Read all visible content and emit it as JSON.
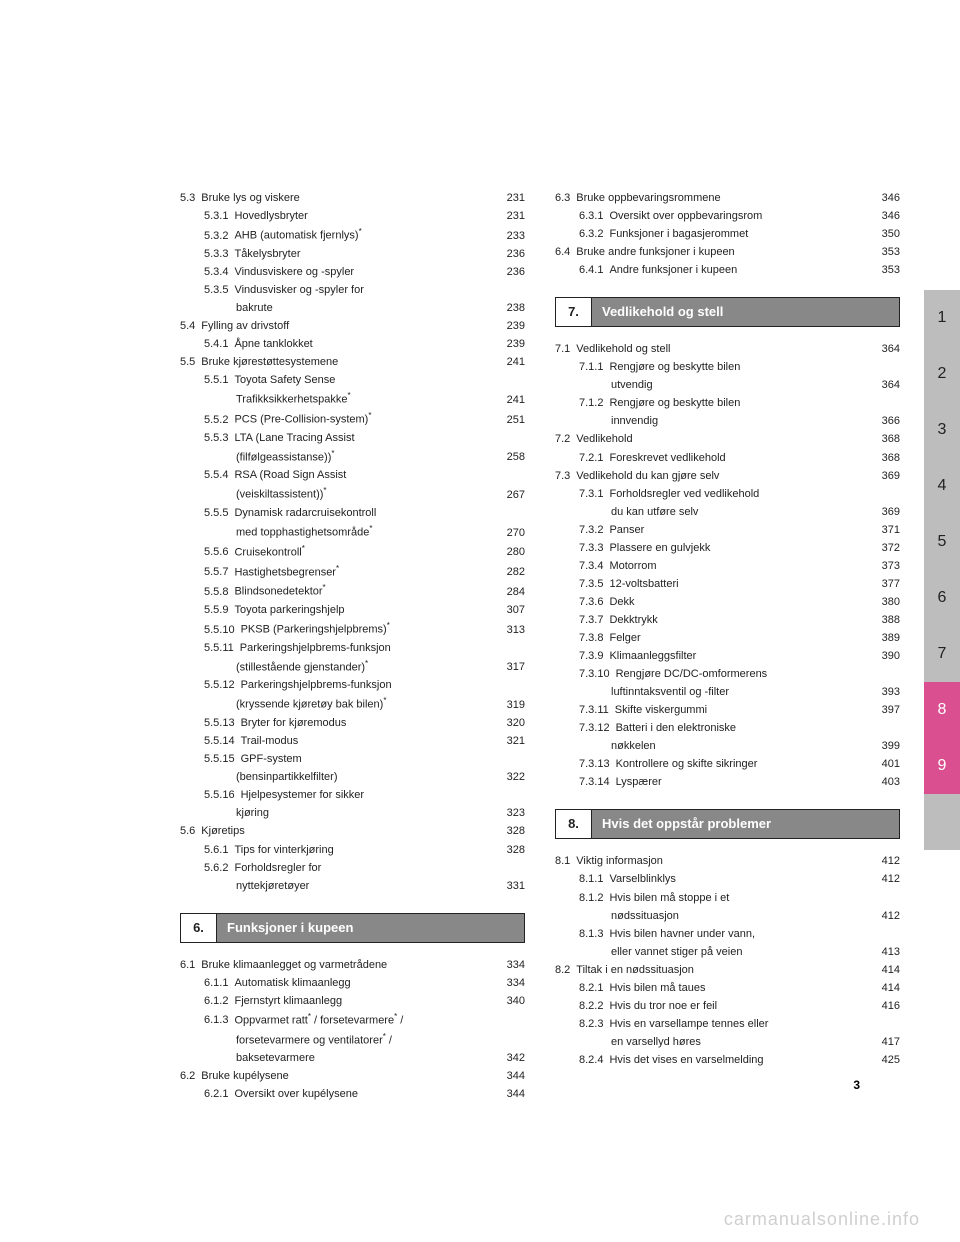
{
  "page_number": "3",
  "watermark": "carmanualsonline.info",
  "tabs": [
    "1",
    "2",
    "3",
    "4",
    "5",
    "6",
    "7",
    "8",
    "9",
    ""
  ],
  "tab_highlight": [
    7,
    8
  ],
  "left": [
    {
      "t": "l1",
      "n": "5.3",
      "l": "Bruke lys og viskere",
      "p": "231"
    },
    {
      "t": "l2",
      "n": "5.3.1",
      "l": "Hovedlysbryter",
      "p": "231"
    },
    {
      "t": "l2",
      "n": "5.3.2",
      "l": "AHB (automatisk fjernlys)*",
      "p": "233"
    },
    {
      "t": "l2",
      "n": "5.3.3",
      "l": "Tåkelysbryter",
      "p": "236"
    },
    {
      "t": "l2",
      "n": "5.3.4",
      "l": "Vindusviskere og -spyler",
      "p": "236"
    },
    {
      "t": "l2w",
      "n": "5.3.5",
      "l": "Vindusvisker og -spyler for",
      "l2": "bakrute",
      "p": "238"
    },
    {
      "t": "l1",
      "n": "5.4",
      "l": "Fylling av drivstoff",
      "p": "239"
    },
    {
      "t": "l2",
      "n": "5.4.1",
      "l": "Åpne tanklokket",
      "p": "239"
    },
    {
      "t": "l1",
      "n": "5.5",
      "l": "Bruke kjørestøttesystemene",
      "p": "241"
    },
    {
      "t": "l2w",
      "n": "5.5.1",
      "l": "Toyota Safety Sense",
      "l2": "Trafikksikkerhetspakke*",
      "p": "241"
    },
    {
      "t": "l2",
      "n": "5.5.2",
      "l": "PCS (Pre-Collision-system)*",
      "p": "251"
    },
    {
      "t": "l2w",
      "n": "5.5.3",
      "l": "LTA (Lane Tracing Assist",
      "l2": "(filfølgeassistanse))*",
      "p": "258"
    },
    {
      "t": "l2w",
      "n": "5.5.4",
      "l": "RSA (Road Sign Assist",
      "l2": "(veiskiltassistent))*",
      "p": "267"
    },
    {
      "t": "l2w",
      "n": "5.5.5",
      "l": "Dynamisk radarcruisekontroll",
      "l2": "med topphastighetsområde*",
      "p": "270"
    },
    {
      "t": "l2",
      "n": "5.5.6",
      "l": "Cruisekontroll*",
      "p": "280"
    },
    {
      "t": "l2",
      "n": "5.5.7",
      "l": "Hastighetsbegrenser*",
      "p": "282"
    },
    {
      "t": "l2",
      "n": "5.5.8",
      "l": "Blindsonedetektor*",
      "p": "284"
    },
    {
      "t": "l2",
      "n": "5.5.9",
      "l": "Toyota parkeringshjelp",
      "p": "307"
    },
    {
      "t": "l2",
      "n": "5.5.10",
      "l": "PKSB (Parkeringshjelpbrems)*",
      "p": "313"
    },
    {
      "t": "l2w",
      "n": "5.5.11",
      "l": "Parkeringshjelpbrems-funksjon",
      "l2": "(stillestående gjenstander)*",
      "p": "317"
    },
    {
      "t": "l2w",
      "n": "5.5.12",
      "l": "Parkeringshjelpbrems-funksjon",
      "l2": "(kryssende kjøretøy bak bilen)*",
      "p": "319"
    },
    {
      "t": "l2",
      "n": "5.5.13",
      "l": "Bryter for kjøremodus",
      "p": "320"
    },
    {
      "t": "l2",
      "n": "5.5.14",
      "l": "Trail-modus",
      "p": "321"
    },
    {
      "t": "l2w",
      "n": "5.5.15",
      "l": "GPF-system",
      "l2": "(bensinpartikkelfilter)",
      "p": "322"
    },
    {
      "t": "l2w",
      "n": "5.5.16",
      "l": "Hjelpesystemer for sikker",
      "l2": "kjøring",
      "p": "323"
    },
    {
      "t": "l1",
      "n": "5.6",
      "l": "Kjøretips",
      "p": "328"
    },
    {
      "t": "l2",
      "n": "5.6.1",
      "l": "Tips for vinterkjøring",
      "p": "328"
    },
    {
      "t": "l2w",
      "n": "5.6.2",
      "l": "Forholdsregler for",
      "l2": "nyttekjøretøyer",
      "p": "331"
    },
    {
      "t": "sec",
      "n": "6.",
      "title": "Funksjoner i kupeen"
    },
    {
      "t": "l1",
      "n": "6.1",
      "l": "Bruke klimaanlegget og varmetrådene",
      "p": "334"
    },
    {
      "t": "l2",
      "n": "6.1.1",
      "l": "Automatisk klimaanlegg",
      "p": "334"
    },
    {
      "t": "l2",
      "n": "6.1.2",
      "l": "Fjernstyrt klimaanlegg",
      "p": "340"
    },
    {
      "t": "l2w3",
      "n": "6.1.3",
      "l": "Oppvarmet ratt* / forsetevarmere* /",
      "l2": "forsetevarmere og ventilatorer* /",
      "l3": "baksetevarmere",
      "p": "342"
    },
    {
      "t": "l1",
      "n": "6.2",
      "l": "Bruke kupélysene",
      "p": "344"
    },
    {
      "t": "l2",
      "n": "6.2.1",
      "l": "Oversikt over kupélysene",
      "p": "344"
    }
  ],
  "right": [
    {
      "t": "l1",
      "n": "6.3",
      "l": "Bruke oppbevaringsrommene",
      "p": "346"
    },
    {
      "t": "l2",
      "n": "6.3.1",
      "l": "Oversikt over oppbevaringsrom",
      "p": "346"
    },
    {
      "t": "l2",
      "n": "6.3.2",
      "l": "Funksjoner i bagasjerommet",
      "p": "350"
    },
    {
      "t": "l1",
      "n": "6.4",
      "l": "Bruke andre funksjoner i kupeen",
      "p": "353"
    },
    {
      "t": "l2",
      "n": "6.4.1",
      "l": "Andre funksjoner i kupeen",
      "p": "353"
    },
    {
      "t": "sec",
      "n": "7.",
      "title": "Vedlikehold og stell"
    },
    {
      "t": "l1",
      "n": "7.1",
      "l": "Vedlikehold og stell",
      "p": "364"
    },
    {
      "t": "l2w",
      "n": "7.1.1",
      "l": "Rengjøre og beskytte bilen",
      "l2": "utvendig",
      "p": "364"
    },
    {
      "t": "l2w",
      "n": "7.1.2",
      "l": "Rengjøre og beskytte bilen",
      "l2": "innvendig",
      "p": "366"
    },
    {
      "t": "l1",
      "n": "7.2",
      "l": "Vedlikehold",
      "p": "368"
    },
    {
      "t": "l2",
      "n": "7.2.1",
      "l": "Foreskrevet vedlikehold",
      "p": "368"
    },
    {
      "t": "l1",
      "n": "7.3",
      "l": "Vedlikehold du kan gjøre selv",
      "p": "369"
    },
    {
      "t": "l2w",
      "n": "7.3.1",
      "l": "Forholdsregler ved vedlikehold",
      "l2": "du kan utføre selv",
      "p": "369"
    },
    {
      "t": "l2",
      "n": "7.3.2",
      "l": "Panser",
      "p": "371"
    },
    {
      "t": "l2",
      "n": "7.3.3",
      "l": "Plassere en gulvjekk",
      "p": "372"
    },
    {
      "t": "l2",
      "n": "7.3.4",
      "l": "Motorrom",
      "p": "373"
    },
    {
      "t": "l2",
      "n": "7.3.5",
      "l": "12-voltsbatteri",
      "p": "377"
    },
    {
      "t": "l2",
      "n": "7.3.6",
      "l": "Dekk",
      "p": "380"
    },
    {
      "t": "l2",
      "n": "7.3.7",
      "l": "Dekktrykk",
      "p": "388"
    },
    {
      "t": "l2",
      "n": "7.3.8",
      "l": "Felger",
      "p": "389"
    },
    {
      "t": "l2",
      "n": "7.3.9",
      "l": "Klimaanleggsfilter",
      "p": "390"
    },
    {
      "t": "l2w",
      "n": "7.3.10",
      "l": "Rengjøre DC/DC-omformerens",
      "l2": "luftinntaksventil og -filter",
      "p": "393"
    },
    {
      "t": "l2",
      "n": "7.3.11",
      "l": "Skifte viskergummi",
      "p": "397"
    },
    {
      "t": "l2w",
      "n": "7.3.12",
      "l": "Batteri i den elektroniske",
      "l2": "nøkkelen",
      "p": "399"
    },
    {
      "t": "l2",
      "n": "7.3.13",
      "l": "Kontrollere og skifte sikringer",
      "p": "401"
    },
    {
      "t": "l2",
      "n": "7.3.14",
      "l": "Lyspærer",
      "p": "403"
    },
    {
      "t": "sec",
      "n": "8.",
      "title": "Hvis det oppstår problemer"
    },
    {
      "t": "l1",
      "n": "8.1",
      "l": "Viktig informasjon",
      "p": "412"
    },
    {
      "t": "l2",
      "n": "8.1.1",
      "l": "Varselblinklys",
      "p": "412"
    },
    {
      "t": "l2w",
      "n": "8.1.2",
      "l": "Hvis bilen må stoppe i et",
      "l2": "nødssituasjon",
      "p": "412"
    },
    {
      "t": "l2w",
      "n": "8.1.3",
      "l": "Hvis bilen havner under vann,",
      "l2": "eller vannet stiger på veien",
      "p": "413"
    },
    {
      "t": "l1",
      "n": "8.2",
      "l": "Tiltak i en nødssituasjon",
      "p": "414"
    },
    {
      "t": "l2",
      "n": "8.2.1",
      "l": "Hvis bilen må taues",
      "p": "414"
    },
    {
      "t": "l2",
      "n": "8.2.2",
      "l": "Hvis du tror noe er feil",
      "p": "416"
    },
    {
      "t": "l2w",
      "n": "8.2.3",
      "l": "Hvis en varsellampe tennes eller",
      "l2": "en varsellyd høres",
      "p": "417"
    },
    {
      "t": "l2",
      "n": "8.2.4",
      "l": "Hvis det vises en varselmelding",
      "p": "425"
    }
  ]
}
